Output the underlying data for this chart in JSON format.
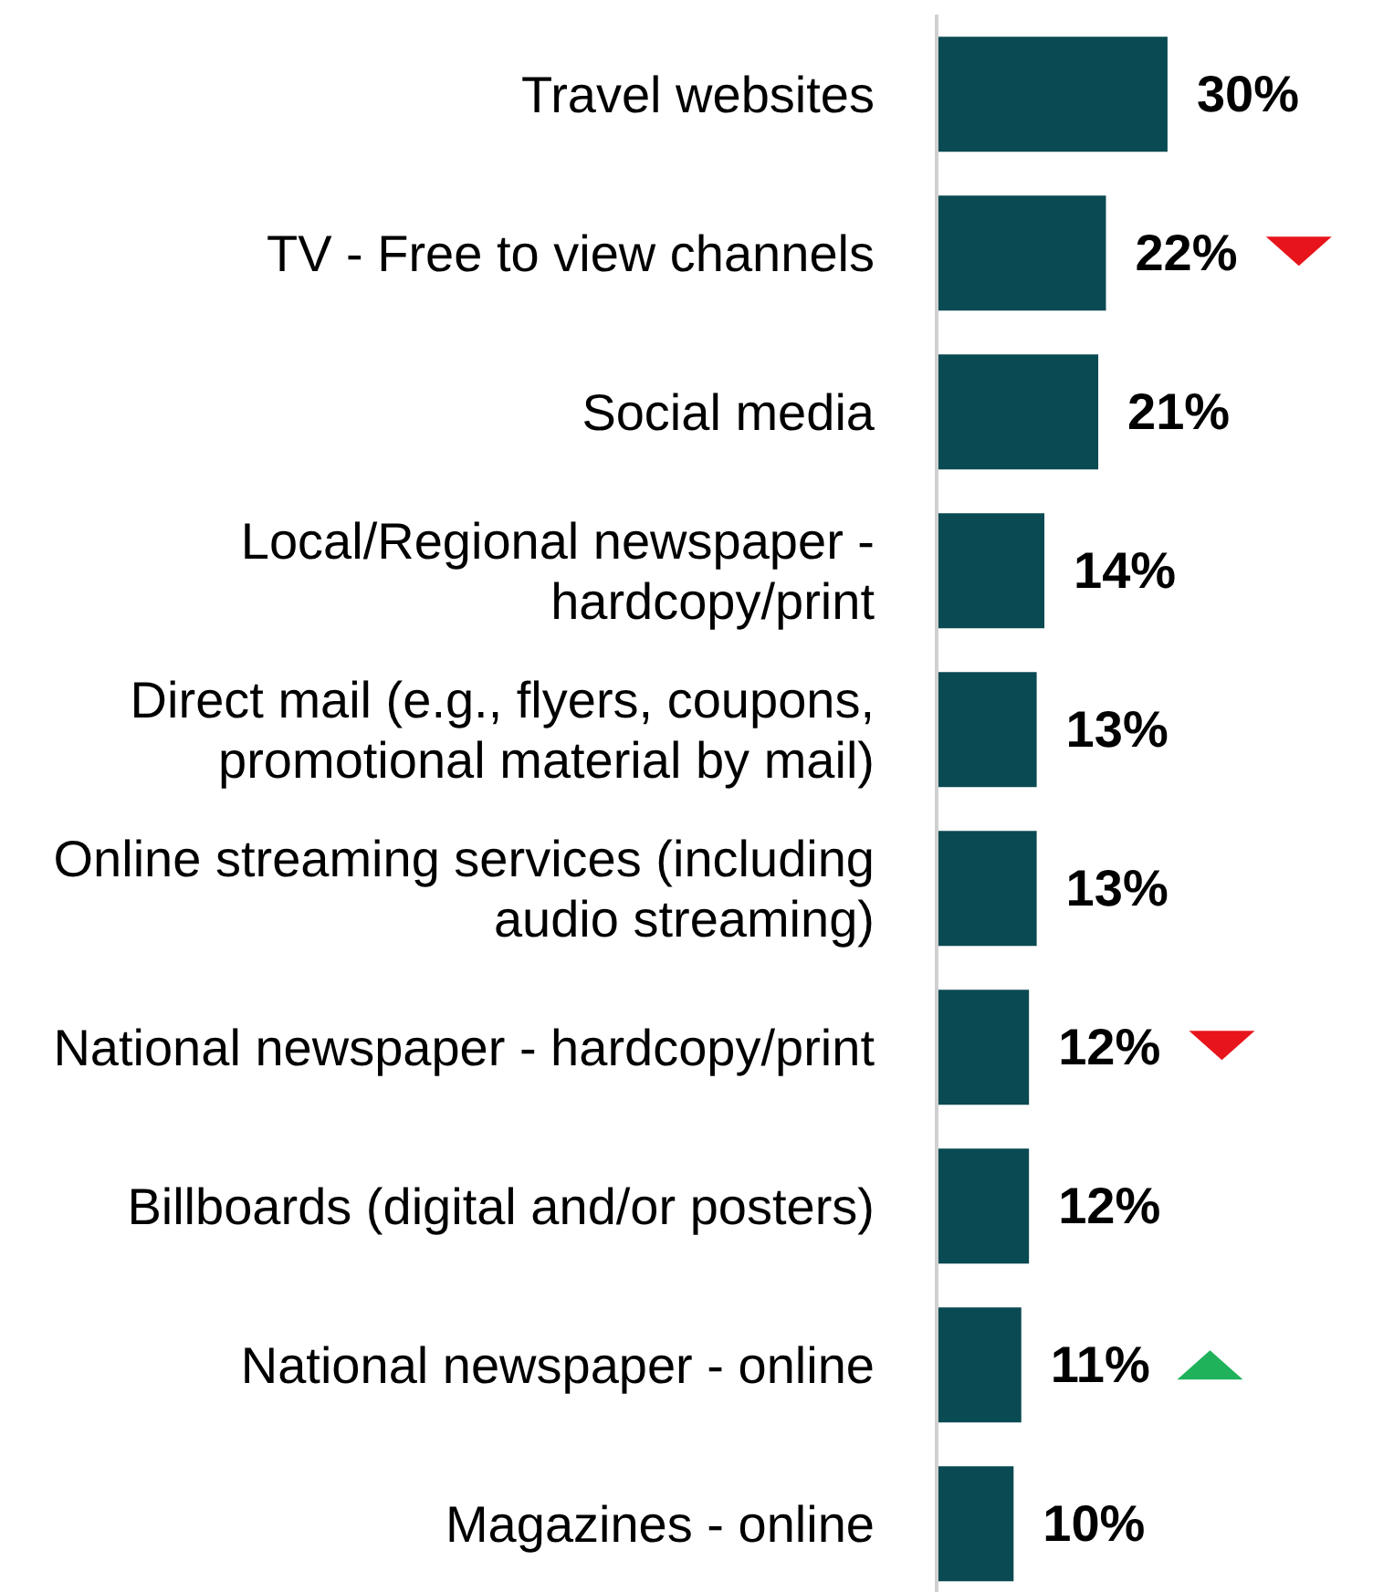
{
  "chart_data": {
    "type": "bar",
    "orientation": "horizontal",
    "categories": [
      "Travel websites",
      "TV - Free to view channels",
      "Social media",
      "Local/Regional newspaper - hardcopy/print",
      "Direct mail (e.g., flyers, coupons, promotional material by mail)",
      "Online streaming services (including audio streaming)",
      "National newspaper - hardcopy/print",
      "Billboards (digital and/or posters)",
      "National newspaper - online",
      "Magazines - online"
    ],
    "values": [
      30,
      22,
      21,
      14,
      13,
      13,
      12,
      12,
      11,
      10
    ],
    "value_labels": [
      "30%",
      "22%",
      "21%",
      "14%",
      "13%",
      "13%",
      "12%",
      "12%",
      "11%",
      "10%"
    ],
    "color": "#0a4a52"
  }
}
